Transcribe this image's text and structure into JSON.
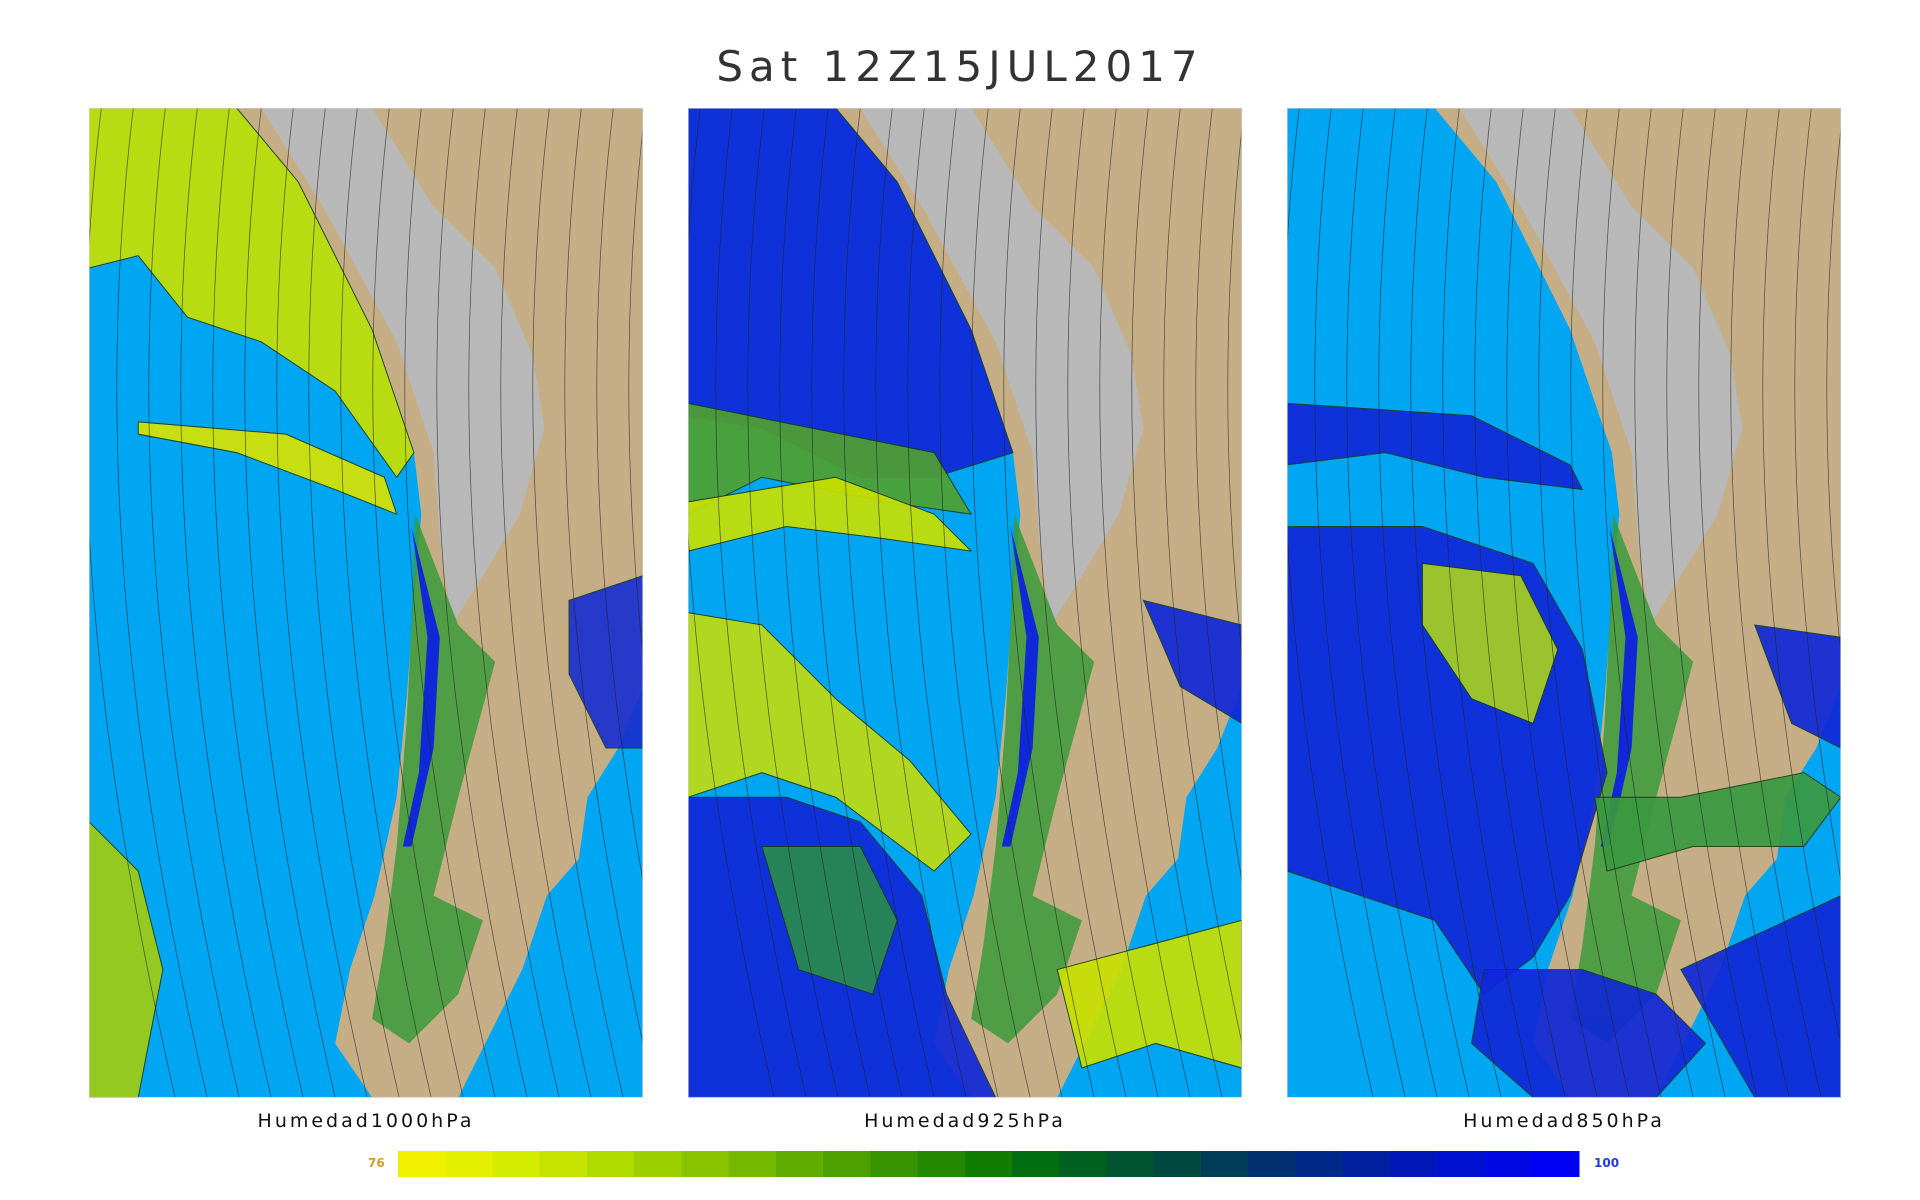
{
  "header": {
    "title": "Sat 12Z15JUL2017"
  },
  "panels": [
    {
      "label": "Humedad1000hPa"
    },
    {
      "label": "Humedad925hPa"
    },
    {
      "label": "Humedad850hPa"
    }
  ],
  "colorbar": {
    "min": 76,
    "max": 100
  }
}
